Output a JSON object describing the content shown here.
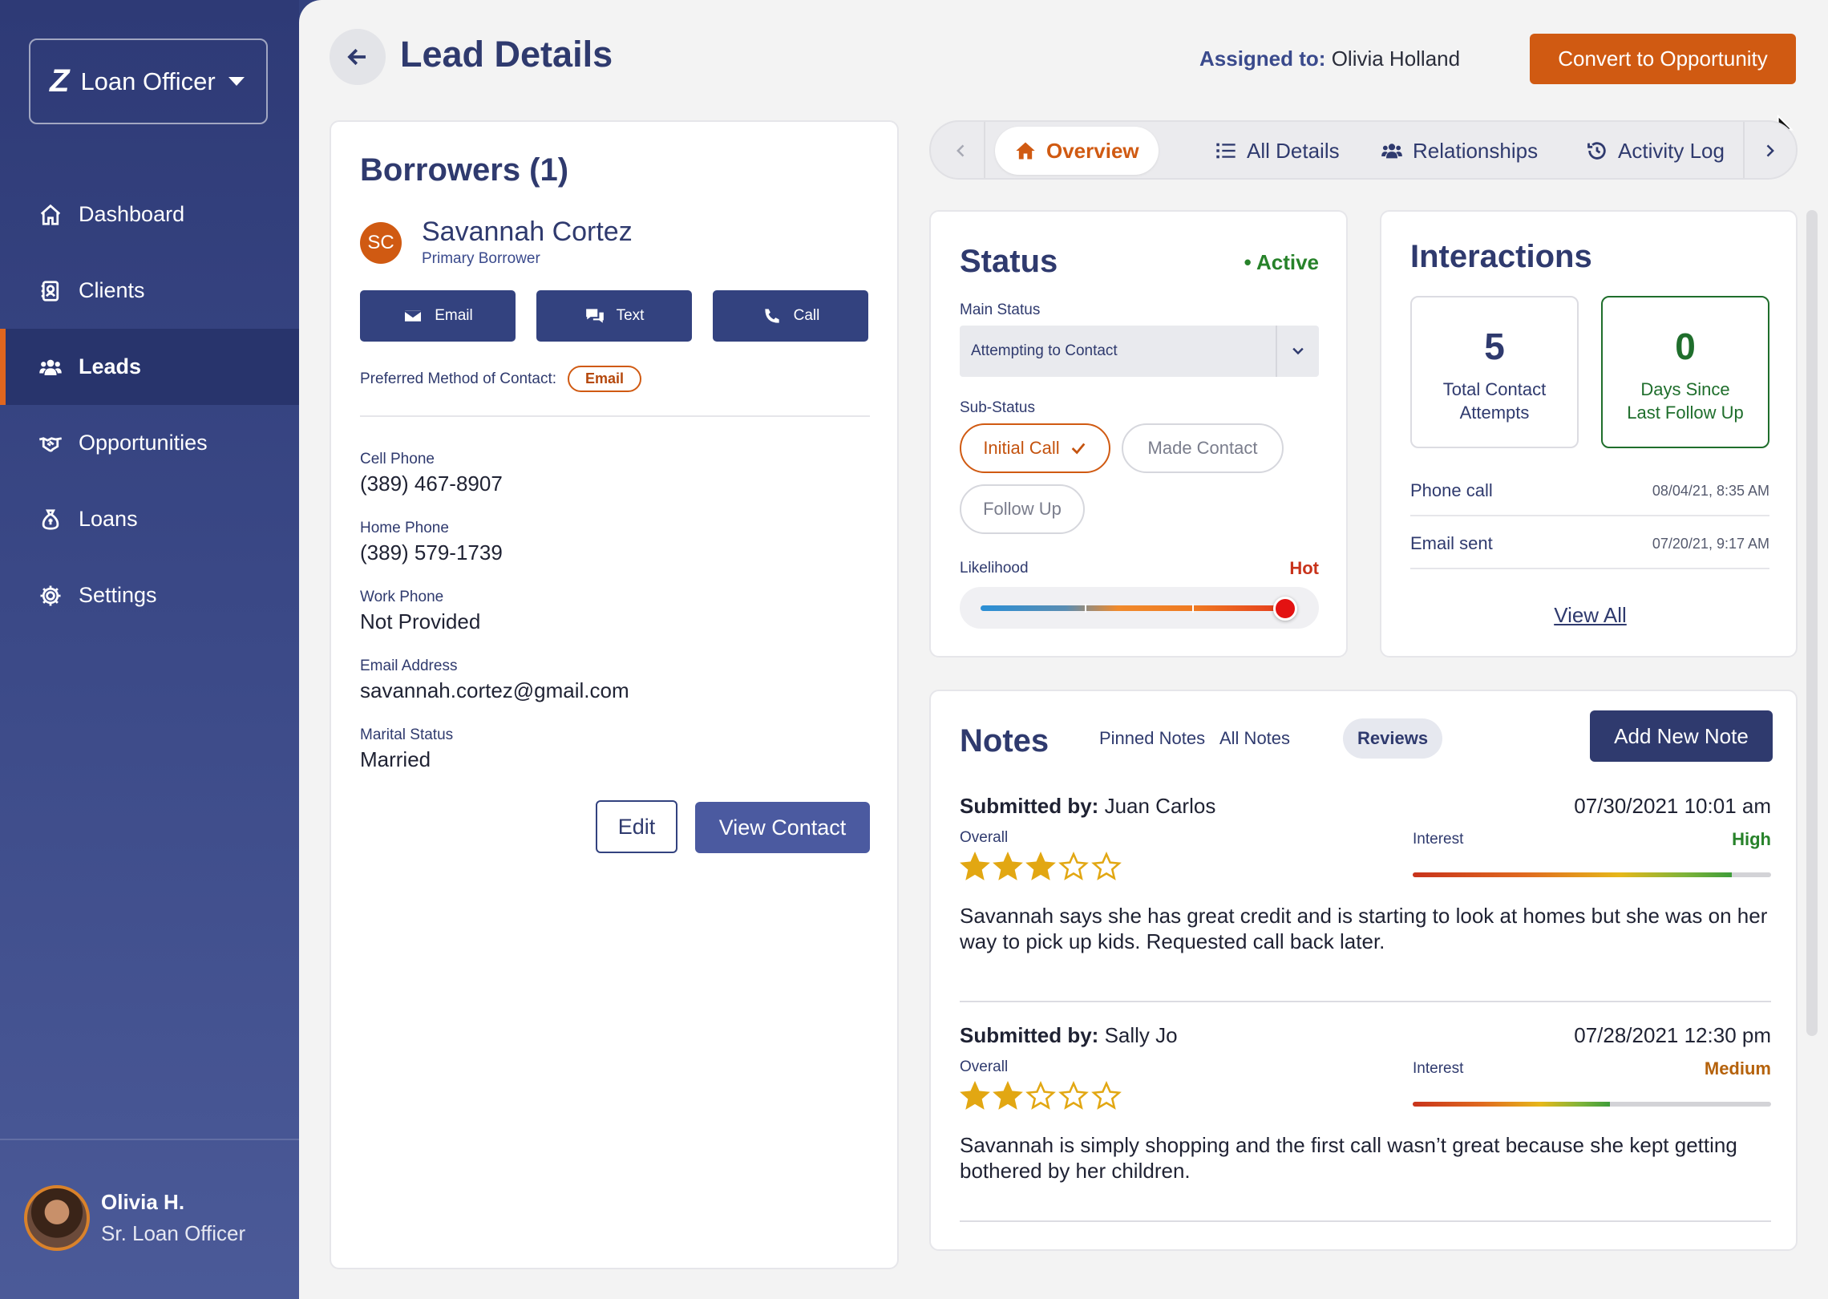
{
  "sidebar": {
    "brand": "Loan Officer",
    "items": [
      {
        "label": "Dashboard",
        "icon": "home-icon"
      },
      {
        "label": "Clients",
        "icon": "contacts-icon"
      },
      {
        "label": "Leads",
        "icon": "users-icon",
        "active": true
      },
      {
        "label": "Opportunities",
        "icon": "handshake-icon"
      },
      {
        "label": "Loans",
        "icon": "money-bag-icon"
      },
      {
        "label": "Settings",
        "icon": "gear-icon"
      }
    ],
    "profile": {
      "name": "Olivia H.",
      "role": "Sr. Loan Officer"
    }
  },
  "header": {
    "title": "Lead Details",
    "assigned_label": "Assigned to:",
    "assigned_name": "Olivia Holland",
    "convert_label": "Convert to Opportunity"
  },
  "borrowers": {
    "title": "Borrowers (1)",
    "initials": "SC",
    "name": "Savannah Cortez",
    "role": "Primary Borrower",
    "buttons": {
      "email": "Email",
      "text": "Text",
      "call": "Call"
    },
    "preferred_label": "Preferred Method of Contact:",
    "preferred_value": "Email",
    "fields": [
      {
        "label": "Cell Phone",
        "value": "(389) 467-8907"
      },
      {
        "label": "Home Phone",
        "value": "(389) 579-1739"
      },
      {
        "label": "Work Phone",
        "value": "Not Provided"
      },
      {
        "label": "Email Address",
        "value": "savannah.cortez@gmail.com"
      },
      {
        "label": "Marital Status",
        "value": "Married"
      }
    ],
    "edit_label": "Edit",
    "view_contact_label": "View Contact"
  },
  "tabs": {
    "items": [
      {
        "label": "Overview",
        "icon": "home-icon",
        "active": true
      },
      {
        "label": "All Details",
        "icon": "list-icon"
      },
      {
        "label": "Relationships",
        "icon": "users-icon"
      },
      {
        "label": "Activity Log",
        "icon": "history-icon"
      }
    ]
  },
  "status": {
    "title": "Status",
    "state": "• Active",
    "main_status_label": "Main Status",
    "main_status_value": "Attempting to Contact",
    "sub_status_label": "Sub-Status",
    "sub_status_options": [
      "Initial Call",
      "Made Contact",
      "Follow Up"
    ],
    "sub_status_selected": "Initial Call",
    "likelihood_label": "Likelihood",
    "likelihood_value": "Hot",
    "likelihood_level": 0.96
  },
  "interactions": {
    "title": "Interactions",
    "stats": [
      {
        "value": "5",
        "label": "Total Contact Attempts"
      },
      {
        "value": "0",
        "label": "Days Since Last Follow Up"
      }
    ],
    "log": [
      {
        "type": "Phone call",
        "datetime": "08/04/21, 8:35 AM"
      },
      {
        "type": "Email sent",
        "datetime": "07/20/21, 9:17 AM"
      }
    ],
    "view_all": "View All"
  },
  "notes": {
    "title": "Notes",
    "tabs": [
      "Pinned Notes",
      "All Notes",
      "Reviews"
    ],
    "active_tab": "Reviews",
    "add_label": "Add New Note",
    "submitted_label": "Submitted by:",
    "overall_label": "Overall",
    "interest_label": "Interest",
    "items": [
      {
        "author": "Juan Carlos",
        "datetime": "07/30/2021 10:01 am",
        "rating": 3,
        "interest": "High",
        "interest_level": 0.89,
        "interest_color": "#27822a",
        "text": "Savannah says she has great credit and is starting to look at homes but she was on her way to pick up kids. Requested call back later."
      },
      {
        "author": "Sally Jo",
        "datetime": "07/28/2021 12:30 pm",
        "rating": 2,
        "interest": "Medium",
        "interest_level": 0.55,
        "interest_color": "#b5620c",
        "text": "Savannah is simply shopping and the first call wasn’t great because she kept getting bothered by her children."
      }
    ]
  },
  "colors": {
    "accent": "#d05a12",
    "navy": "#2f3a6e",
    "sidebar": "#33427f"
  }
}
